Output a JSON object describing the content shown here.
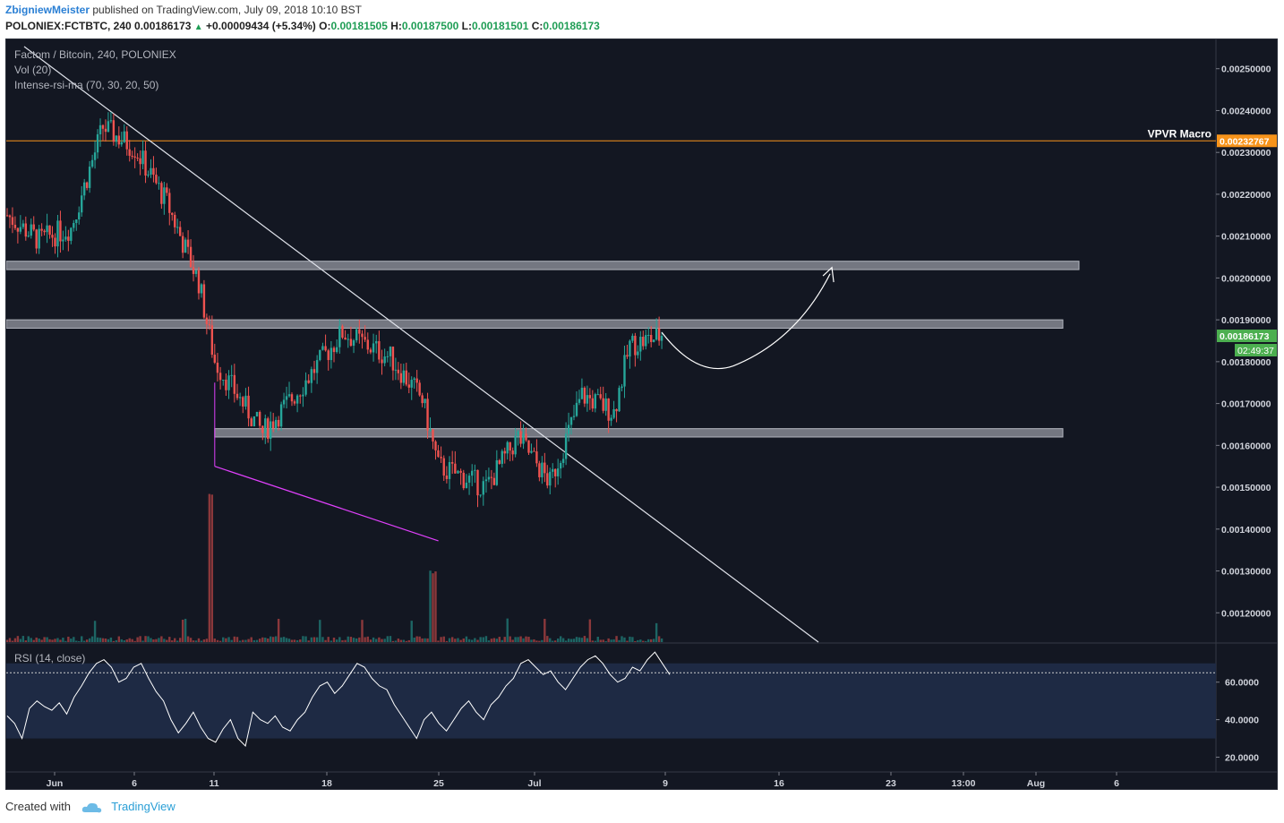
{
  "header": {
    "author": "ZbigniewMeister",
    "published_text": "published on TradingView.com, July 09, 2018 10:10 BST",
    "symbol": "POLONIEX:FCTBTC, 240",
    "last": "0.00186173",
    "change": "+0.00009434 (+5.34%)",
    "open_label": "O:",
    "open": "0.00181505",
    "high_label": "H:",
    "high": "0.00187500",
    "low_label": "L:",
    "low": "0.00181501",
    "close_label": "C:",
    "close": "0.00186173"
  },
  "legend": {
    "main": "Factom / Bitcoin, 240, POLONIEX",
    "vol": "Vol (20)",
    "indicator": "Intense-rsi-ma (70, 30, 20, 50)",
    "rsi": "RSI (14, close)"
  },
  "footer": {
    "created_with": "Created with",
    "brand": "TradingView"
  },
  "colors": {
    "background": "#131722",
    "up": "#26a69a",
    "down": "#ef5350",
    "zone": "#9598a1",
    "vpvr": "#f7931a",
    "last_price": "#4caf50",
    "wedge": "#e040fb",
    "rsi_band": "#1e2a44"
  },
  "chart_data": {
    "type": "candlestick",
    "price_axis": {
      "ticks": [
        "0.00120000",
        "0.00130000",
        "0.00140000",
        "0.00150000",
        "0.00160000",
        "0.00170000",
        "0.00180000",
        "0.00190000",
        "0.00200000",
        "0.00210000",
        "0.00220000",
        "0.00230000",
        "0.00240000",
        "0.00250000"
      ],
      "ylim": [
        0.00113,
        0.00257
      ]
    },
    "time_axis": {
      "ticks": [
        "Jun",
        "6",
        "11",
        "18",
        "25",
        "Jul",
        "9",
        "16",
        "23",
        "13:00",
        "Aug",
        "6"
      ]
    },
    "price_path_keypoints": [
      {
        "date": "2018-05-29",
        "close": 0.00215
      },
      {
        "date": "2018-05-31",
        "close": 0.00209
      },
      {
        "date": "2018-06-02",
        "close": 0.00212
      },
      {
        "date": "2018-06-04",
        "close": 0.00236
      },
      {
        "date": "2018-06-06",
        "close": 0.00231
      },
      {
        "date": "2018-06-08",
        "close": 0.00218
      },
      {
        "date": "2018-06-10",
        "close": 0.00199
      },
      {
        "date": "2018-06-11",
        "close": 0.0018
      },
      {
        "date": "2018-06-14",
        "close": 0.00163
      },
      {
        "date": "2018-06-16",
        "close": 0.00172
      },
      {
        "date": "2018-06-19",
        "close": 0.00187
      },
      {
        "date": "2018-06-22",
        "close": 0.00181
      },
      {
        "date": "2018-06-24",
        "close": 0.00171
      },
      {
        "date": "2018-06-25",
        "close": 0.00155
      },
      {
        "date": "2018-06-28",
        "close": 0.0015
      },
      {
        "date": "2018-06-30",
        "close": 0.00162
      },
      {
        "date": "2018-07-02",
        "close": 0.00151
      },
      {
        "date": "2018-07-04",
        "close": 0.00172
      },
      {
        "date": "2018-07-06",
        "close": 0.00168
      },
      {
        "date": "2018-07-07",
        "close": 0.00184
      },
      {
        "date": "2018-07-09",
        "close": 0.00186173
      }
    ],
    "resistance_zones": [
      {
        "price_low": 0.00202,
        "price_high": 0.00204
      },
      {
        "price_low": 0.00188,
        "price_high": 0.0019
      },
      {
        "price_low": 0.00162,
        "price_high": 0.00164
      }
    ],
    "vpvr": {
      "label": "VPVR Macro",
      "price": "0.00232767"
    },
    "last_price": {
      "price": "0.00186173",
      "countdown": "02:49:37"
    },
    "rsi": {
      "axis_ticks": [
        "20.0000",
        "40.0000",
        "60.0000"
      ],
      "ylim": [
        15,
        78
      ],
      "overbought": 70,
      "oversold": 30,
      "values": [
        42,
        38,
        30,
        46,
        50,
        47,
        45,
        49,
        43,
        52,
        58,
        65,
        70,
        72,
        68,
        60,
        62,
        68,
        70,
        62,
        55,
        50,
        40,
        33,
        38,
        44,
        36,
        30,
        28,
        35,
        40,
        30,
        26,
        44,
        40,
        38,
        42,
        36,
        34,
        40,
        44,
        52,
        58,
        60,
        54,
        58,
        64,
        70,
        68,
        62,
        58,
        56,
        48,
        42,
        36,
        30,
        40,
        44,
        38,
        34,
        40,
        46,
        50,
        44,
        40,
        48,
        52,
        58,
        62,
        70,
        72,
        68,
        64,
        66,
        60,
        56,
        62,
        68,
        72,
        74,
        70,
        64,
        60,
        62,
        68,
        66,
        72,
        76,
        70,
        64
      ]
    }
  }
}
